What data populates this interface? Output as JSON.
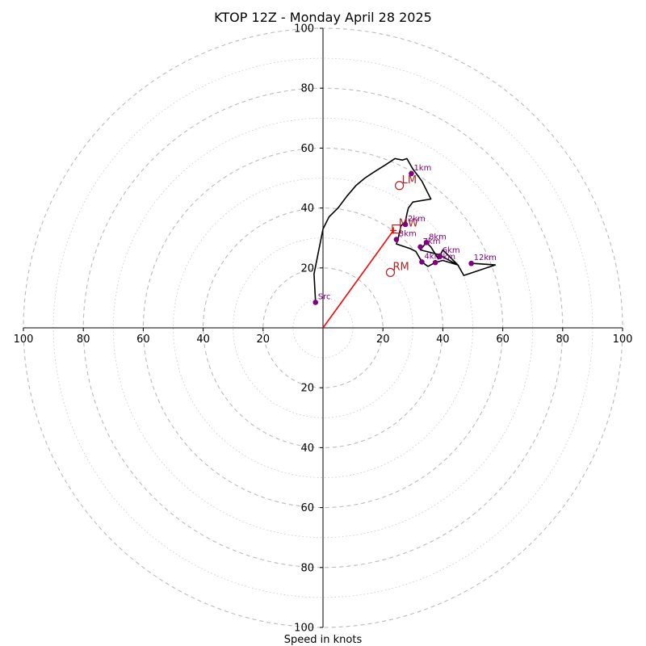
{
  "chart_data": {
    "type": "hodograph",
    "title": "KTOP 12Z - Monday April 28 2025",
    "xlabel": "Speed in knots",
    "rings": [
      10,
      20,
      30,
      40,
      50,
      60,
      70,
      80,
      90,
      100
    ],
    "rings_dashed": [
      20,
      40,
      60,
      80,
      100
    ],
    "rings_dotted": [
      10,
      30,
      50,
      70,
      90
    ],
    "ticks": [
      20,
      40,
      60,
      80,
      100
    ],
    "tick_labels": [
      "20",
      "40",
      "60",
      "80",
      "100"
    ],
    "xlim": [
      -100,
      100
    ],
    "ylim": [
      -100,
      100
    ],
    "trace": [
      [
        -2.5,
        9.0
      ],
      [
        -3.0,
        18.0
      ],
      [
        0.0,
        33.0
      ],
      [
        2.0,
        37.0
      ],
      [
        5.0,
        40.0
      ],
      [
        8.0,
        44.0
      ],
      [
        11.0,
        47.5
      ],
      [
        14.0,
        50.0
      ],
      [
        17.0,
        52.0
      ],
      [
        21.0,
        54.5
      ],
      [
        24.0,
        56.5
      ],
      [
        26.5,
        56.0
      ],
      [
        28.0,
        56.5
      ],
      [
        30.0,
        53.0
      ],
      [
        33.0,
        49.0
      ],
      [
        36.0,
        43.0
      ],
      [
        30.0,
        42.0
      ],
      [
        28.5,
        40.0
      ],
      [
        28.0,
        38.0
      ],
      [
        27.5,
        35.5
      ],
      [
        26.0,
        34.0
      ],
      [
        25.0,
        29.5
      ],
      [
        24.5,
        28.0
      ],
      [
        29.0,
        26.5
      ],
      [
        31.0,
        25.5
      ],
      [
        33.0,
        22.0
      ],
      [
        35.0,
        20.5
      ],
      [
        37.5,
        21.8
      ],
      [
        40.0,
        22.5
      ],
      [
        45.0,
        21.0
      ],
      [
        40.0,
        26.0
      ],
      [
        38.5,
        23.0
      ],
      [
        36.0,
        27.0
      ],
      [
        34.5,
        28.5
      ],
      [
        32.5,
        26.0
      ],
      [
        38.5,
        24.5
      ],
      [
        45.0,
        21.0
      ],
      [
        47.0,
        17.5
      ],
      [
        57.5,
        21.0
      ],
      [
        50.0,
        21.5
      ]
    ],
    "height_markers": [
      {
        "label": "Src",
        "u": -2.5,
        "v": 8.5
      },
      {
        "label": "1km",
        "u": 29.5,
        "v": 51.5
      },
      {
        "label": "2km",
        "u": 27.5,
        "v": 34.5
      },
      {
        "label": "3km",
        "u": 24.5,
        "v": 29.5
      },
      {
        "label": "4km",
        "u": 33.0,
        "v": 22.0
      },
      {
        "label": "5km",
        "u": 37.5,
        "v": 21.8
      },
      {
        "label": "6km",
        "u": 39.0,
        "v": 24.0
      },
      {
        "label": "7km",
        "u": 32.5,
        "v": 27.0
      },
      {
        "label": "8km",
        "u": 34.5,
        "v": 28.5
      },
      {
        "label": "12km",
        "u": 49.5,
        "v": 21.5
      }
    ],
    "storm_motions": [
      {
        "label": "LM",
        "u": 25.5,
        "v": 47.5,
        "marker": "circle"
      },
      {
        "label": "MW",
        "u": 24.5,
        "v": 33.0,
        "marker": "square"
      },
      {
        "label": "RM",
        "u": 22.5,
        "v": 18.5,
        "marker": "circle"
      }
    ],
    "shear_vector": {
      "u0": 0,
      "v0": 0,
      "u1": 23.5,
      "v1": 32.5
    },
    "colors": {
      "trace": "#000000",
      "markers": "#800080",
      "storm_motion": "#b22222",
      "shear": "#ff0000",
      "rings": "#bbbbbb",
      "axes": "#000000"
    },
    "grid": true
  }
}
